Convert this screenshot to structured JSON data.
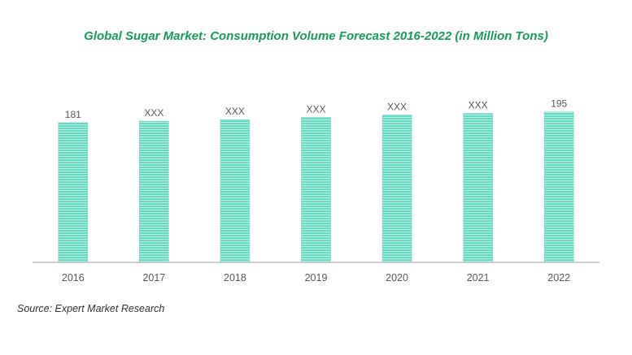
{
  "chart_data": {
    "type": "bar",
    "title": "Global Sugar Market: Consumption Volume Forecast 2016-2022 (in Million Tons)",
    "xlabel": "",
    "ylabel": "",
    "categories": [
      "2016",
      "2017",
      "2018",
      "2019",
      "2020",
      "2021",
      "2022"
    ],
    "values": [
      181,
      183,
      185,
      188,
      191,
      193,
      195
    ],
    "data_labels": [
      "181",
      "XXX",
      "XXX",
      "XXX",
      "XXX",
      "XXX",
      "195"
    ],
    "ylim": [
      0,
      200
    ],
    "grid": false,
    "legend": "none",
    "colors": {
      "bar": "#5fd6c0",
      "bar_stripe": "#a9ebde",
      "bar_border": "#7fd8c8",
      "axis": "#bfbfbf",
      "title": "#1a9a5c",
      "label": "#595959"
    }
  },
  "source": "Source: Expert Market Research"
}
